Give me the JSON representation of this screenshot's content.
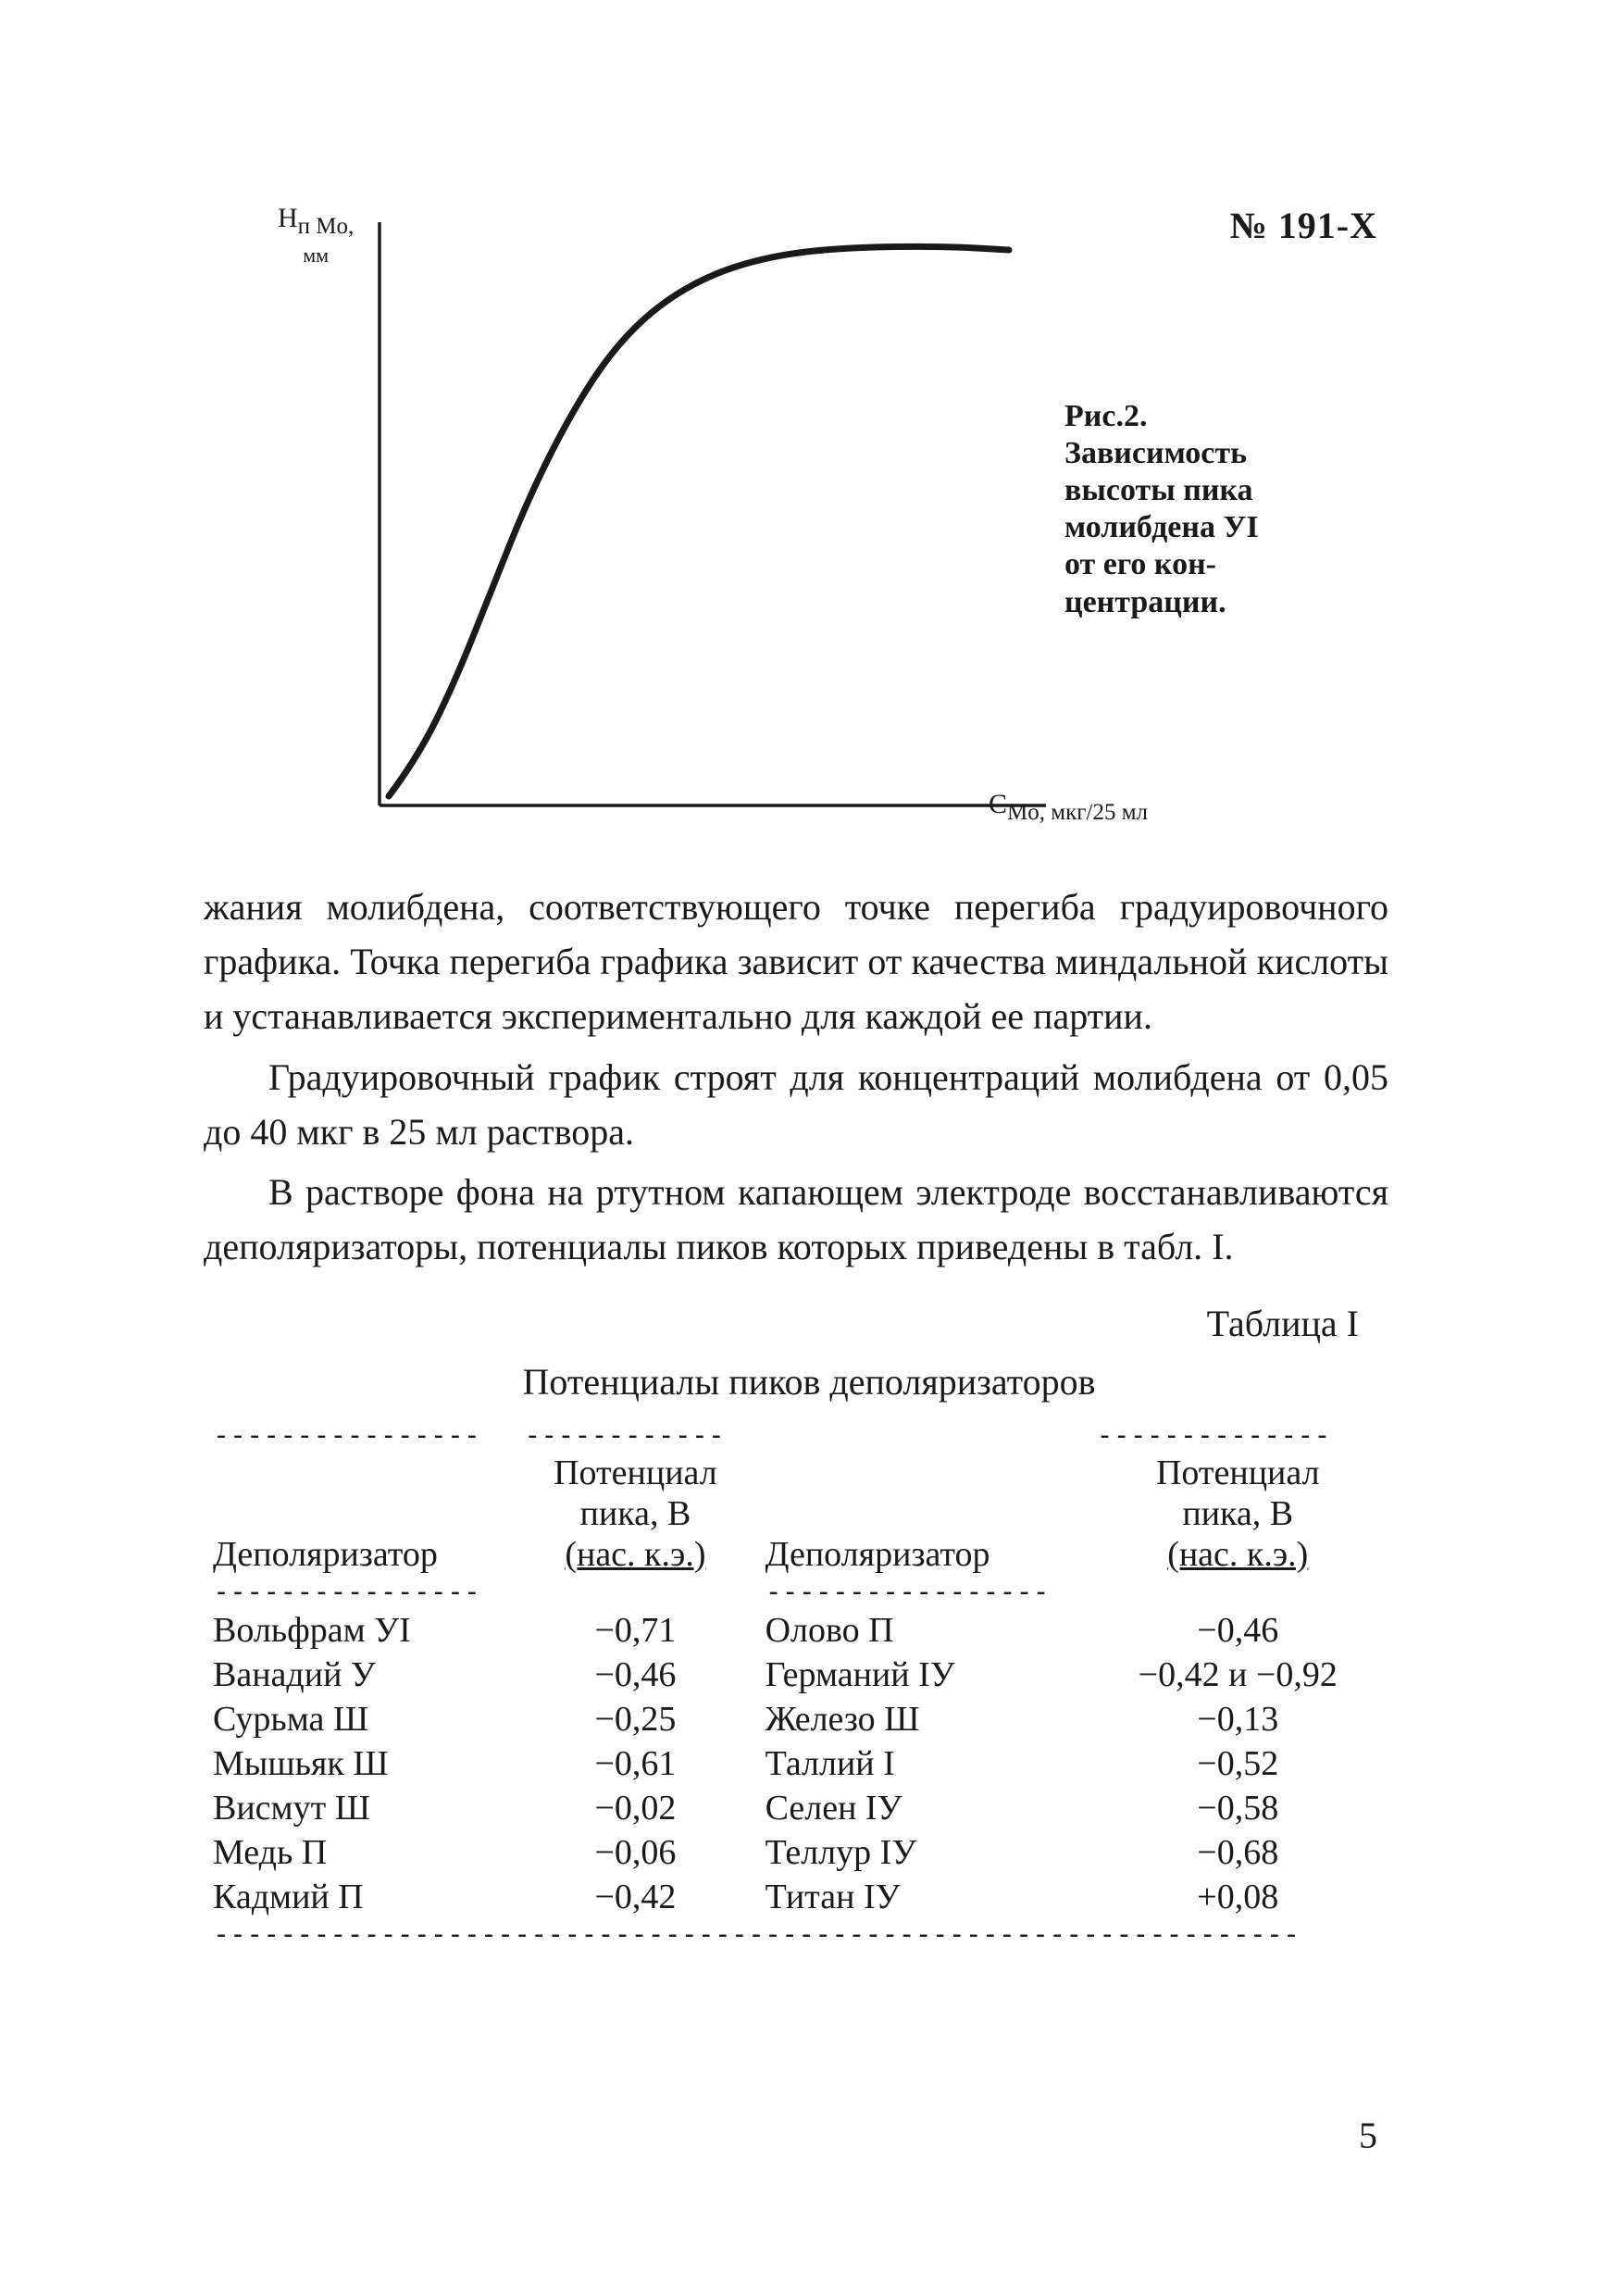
{
  "doc_code": "№ 191-X",
  "chart": {
    "type": "line",
    "y_label_main": "H",
    "y_label_sub1": "п Mo,",
    "y_label_sub2": "мм",
    "x_label": "C",
    "x_label_sub": "Mo, мкг/25 мл",
    "axis_color": "#1a1a1a",
    "line_color": "#1a1a1a",
    "line_width": 7,
    "axis_width": 3.5,
    "background_color": "#ffffff",
    "curve_points": [
      [
        90,
        640
      ],
      [
        120,
        600
      ],
      [
        160,
        520
      ],
      [
        200,
        420
      ],
      [
        240,
        320
      ],
      [
        285,
        230
      ],
      [
        330,
        160
      ],
      [
        380,
        110
      ],
      [
        440,
        75
      ],
      [
        510,
        55
      ],
      [
        590,
        47
      ],
      [
        690,
        46
      ],
      [
        760,
        50
      ]
    ],
    "caption_line1": "Рис.2.",
    "caption_line2": "Зависимость",
    "caption_line3": "высоты пика",
    "caption_line4": "молибдена УI",
    "caption_line5": "от его кон-",
    "caption_line6": "центрации."
  },
  "paragraphs": {
    "p1": "жания молибдена, соответствующего точке перегиба градуировоч­ного графика. Точка перегиба графика зависит от качества мин­дальной кислоты и устанавливается экспериментально для каж­дой ее партии.",
    "p2": "Градуировочный график строят для концентраций молибде­на от 0,05 до 40 мкг в 25 мл раствора.",
    "p3": "В растворе фона на ртутном капающем электроде восстанав­ливаются деполяризаторы, потенциалы пиков которых приведе­ны в табл. I."
  },
  "table": {
    "label": "Таблица I",
    "title": "Потенциалы пиков деполяризаторов",
    "header_col1": "Деполяризатор",
    "header_col2a": "Потенциал",
    "header_col2b": "пика, В",
    "header_col2c": "(нас. к.э.)",
    "header_col3": "Деполяризатор",
    "header_col4a": "Потенциал",
    "header_col4b": "пика, В",
    "header_col4c": "(нас. к.э.)",
    "rows": [
      {
        "d1": "Вольфрам УI",
        "v1": "−0,71",
        "d2": "Олово П",
        "v2": "−0,46"
      },
      {
        "d1": "Ванадий У",
        "v1": "−0,46",
        "d2": "Германий IУ",
        "v2": "−0,42 и −0,92"
      },
      {
        "d1": "Сурьма Ш",
        "v1": "−0,25",
        "d2": "Железо Ш",
        "v2": "−0,13"
      },
      {
        "d1": "Мышьяк Ш",
        "v1": "−0,61",
        "d2": "Таллий I",
        "v2": "−0,52"
      },
      {
        "d1": "Висмут Ш",
        "v1": "−0,02",
        "d2": "Селен IУ",
        "v2": "−0,58"
      },
      {
        "d1": "Медь П",
        "v1": "−0,06",
        "d2": "Теллур IУ",
        "v2": "−0,68"
      },
      {
        "d1": "Кадмий П",
        "v1": "−0,42",
        "d2": "Титан IУ",
        "v2": "+0,08"
      }
    ],
    "col_widths": [
      "310px",
      "240px",
      "330px",
      "300px"
    ]
  },
  "page_number": "5"
}
